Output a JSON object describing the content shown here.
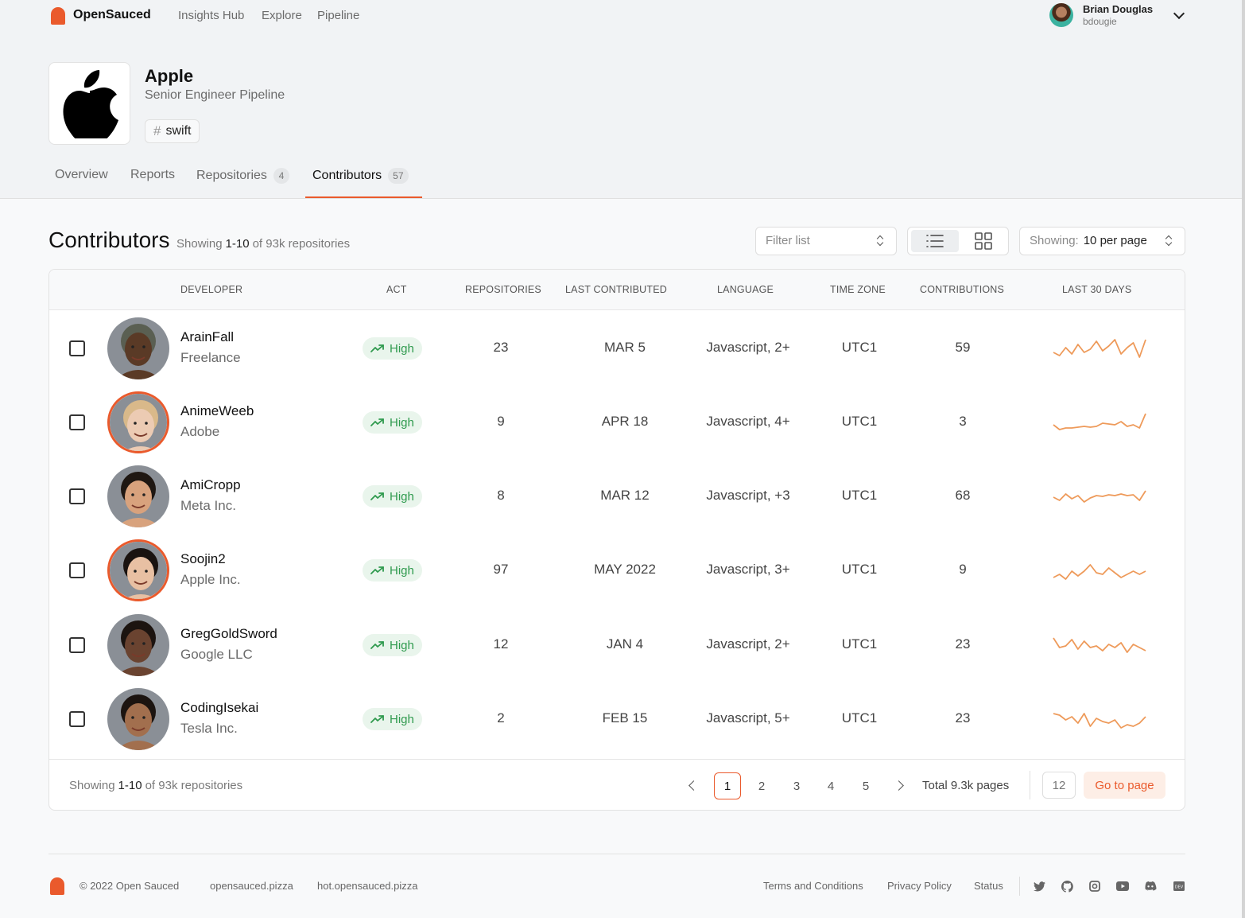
{
  "topnav": {
    "brand": "OpenSauced",
    "links": [
      "Insights Hub",
      "Explore",
      "Pipeline"
    ],
    "user_name": "Brian Douglas",
    "user_handle": "bdougie"
  },
  "org": {
    "name": "Apple",
    "subtitle": "Senior Engineer Pipeline",
    "tag": "swift"
  },
  "tabs": [
    {
      "label": "Overview",
      "count": null
    },
    {
      "label": "Reports",
      "count": null
    },
    {
      "label": "Repositories",
      "count": "4"
    },
    {
      "label": "Contributors",
      "count": "57"
    }
  ],
  "section": {
    "title": "Contributors",
    "showing_prefix": "Showing",
    "showing_range": "1-10",
    "showing_suffix": "of 93k repositories",
    "filter_placeholder": "Filter list",
    "perpage_label": "Showing:",
    "perpage_value": "10 per page"
  },
  "table": {
    "columns": [
      "DEVELOPER",
      "ACT",
      "REPOSITORIES",
      "LAST CONTRIBUTED",
      "LANGUAGE",
      "TIME ZONE",
      "CONTRIBUTIONS",
      "LAST 30 DAYS"
    ],
    "rows": [
      {
        "name": "ArainFall",
        "company": "Freelance",
        "act": "High",
        "repos": "23",
        "last": "MAR 5",
        "language": "Javascript, 2+",
        "tz": "UTC1",
        "contributions": "59",
        "ring": false,
        "skin": "#5a3a26",
        "hair": "#5a5f52"
      },
      {
        "name": "AnimeWeeb",
        "company": "Adobe",
        "act": "High",
        "repos": "9",
        "last": "APR 18",
        "language": "Javascript, 4+",
        "tz": "UTC1",
        "contributions": "3",
        "ring": true,
        "skin": "#eccbb3",
        "hair": "#d9b98a"
      },
      {
        "name": "AmiCropp",
        "company": "Meta Inc.",
        "act": "High",
        "repos": "8",
        "last": "MAR 12",
        "language": "Javascript, +3",
        "tz": "UTC1",
        "contributions": "68",
        "ring": false,
        "skin": "#d8a27d",
        "hair": "#1f1712"
      },
      {
        "name": "Soojin2",
        "company": "Apple Inc.",
        "act": "High",
        "repos": "97",
        "last": "MAY 2022",
        "language": "Javascript, 3+",
        "tz": "UTC1",
        "contributions": "9",
        "ring": true,
        "skin": "#e8c0a3",
        "hair": "#1a1310"
      },
      {
        "name": "GregGoldSword",
        "company": "Google LLC",
        "act": "High",
        "repos": "12",
        "last": "JAN 4",
        "language": "Javascript, 2+",
        "tz": "UTC1",
        "contributions": "23",
        "ring": false,
        "skin": "#6a4330",
        "hair": "#1c1410"
      },
      {
        "name": "CodingIsekai",
        "company": "Tesla Inc.",
        "act": "High",
        "repos": "2",
        "last": "FEB 15",
        "language": "Javascript, 5+",
        "tz": "UTC1",
        "contributions": "23",
        "ring": false,
        "skin": "#a26f4e",
        "hair": "#1c1410"
      }
    ]
  },
  "sparklines": [
    [
      18,
      22,
      12,
      20,
      8,
      18,
      14,
      4,
      16,
      10,
      2,
      20,
      12,
      6,
      24,
      2
    ],
    [
      16,
      22,
      20,
      20,
      19,
      18,
      19,
      18,
      14,
      15,
      16,
      12,
      18,
      16,
      20,
      2
    ],
    [
      14,
      18,
      10,
      16,
      12,
      20,
      15,
      12,
      13,
      11,
      12,
      10,
      12,
      11,
      18,
      6
    ],
    [
      22,
      18,
      24,
      14,
      20,
      14,
      6,
      16,
      18,
      10,
      16,
      22,
      18,
      14,
      18,
      14
    ],
    [
      4,
      16,
      14,
      6,
      18,
      8,
      16,
      14,
      20,
      12,
      16,
      10,
      22,
      12,
      16,
      20
    ],
    [
      6,
      8,
      14,
      10,
      18,
      6,
      22,
      12,
      16,
      18,
      14,
      24,
      20,
      22,
      18,
      10
    ]
  ],
  "pagination": {
    "showing_prefix": "Showing",
    "showing_range": "1-10",
    "showing_suffix": "of 93k repositories",
    "pages": [
      "1",
      "2",
      "3",
      "4",
      "5"
    ],
    "current": "1",
    "total": "Total 9.3k pages",
    "goto_value": "12",
    "goto_label": "Go to page"
  },
  "footer": {
    "copyright": "© 2022 Open Sauced",
    "links_left": [
      "opensauced.pizza",
      "hot.opensauced.pizza"
    ],
    "links_right": [
      "Terms and Conditions",
      "Privacy Policy",
      "Status"
    ],
    "social": [
      "twitter-icon",
      "github-icon",
      "instagram-icon",
      "youtube-icon",
      "discord-icon",
      "dev-icon"
    ]
  },
  "colors": {
    "accent": "#ea5a2c",
    "act_green": "#2f9a4e",
    "act_bg": "#e9f5ec",
    "spark": "#ee9a5a"
  }
}
